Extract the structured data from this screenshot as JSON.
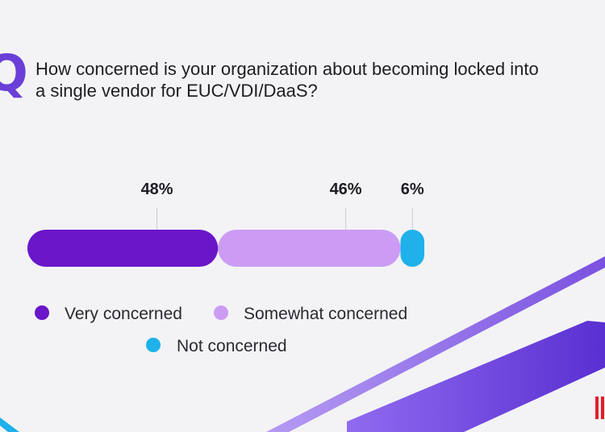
{
  "question": {
    "letter": "Q",
    "text": "How concerned is your organization about becoming locked into a single vendor for EUC/VDI/DaaS?"
  },
  "chart_data": {
    "type": "bar",
    "orientation": "horizontal-stacked",
    "categories": [
      "Very concerned",
      "Somewhat concerned",
      "Not concerned"
    ],
    "values": [
      48,
      46,
      6
    ],
    "data_labels": [
      "48%",
      "46%",
      "6%"
    ],
    "colors": [
      "#6a16c9",
      "#cc9cf5",
      "#1fb1ea"
    ],
    "legend": [
      {
        "label": "Very concerned",
        "color": "#6a16c9"
      },
      {
        "label": "Somewhat concerned",
        "color": "#cc9cf5"
      },
      {
        "label": "Not concerned",
        "color": "#1fb1ea"
      }
    ],
    "legend_position": "bottom-left",
    "grid": false,
    "unit": "%"
  },
  "colors": {
    "background": "#f3f3f5",
    "accent": "#6a3fd8",
    "brand": "#e0202a"
  }
}
